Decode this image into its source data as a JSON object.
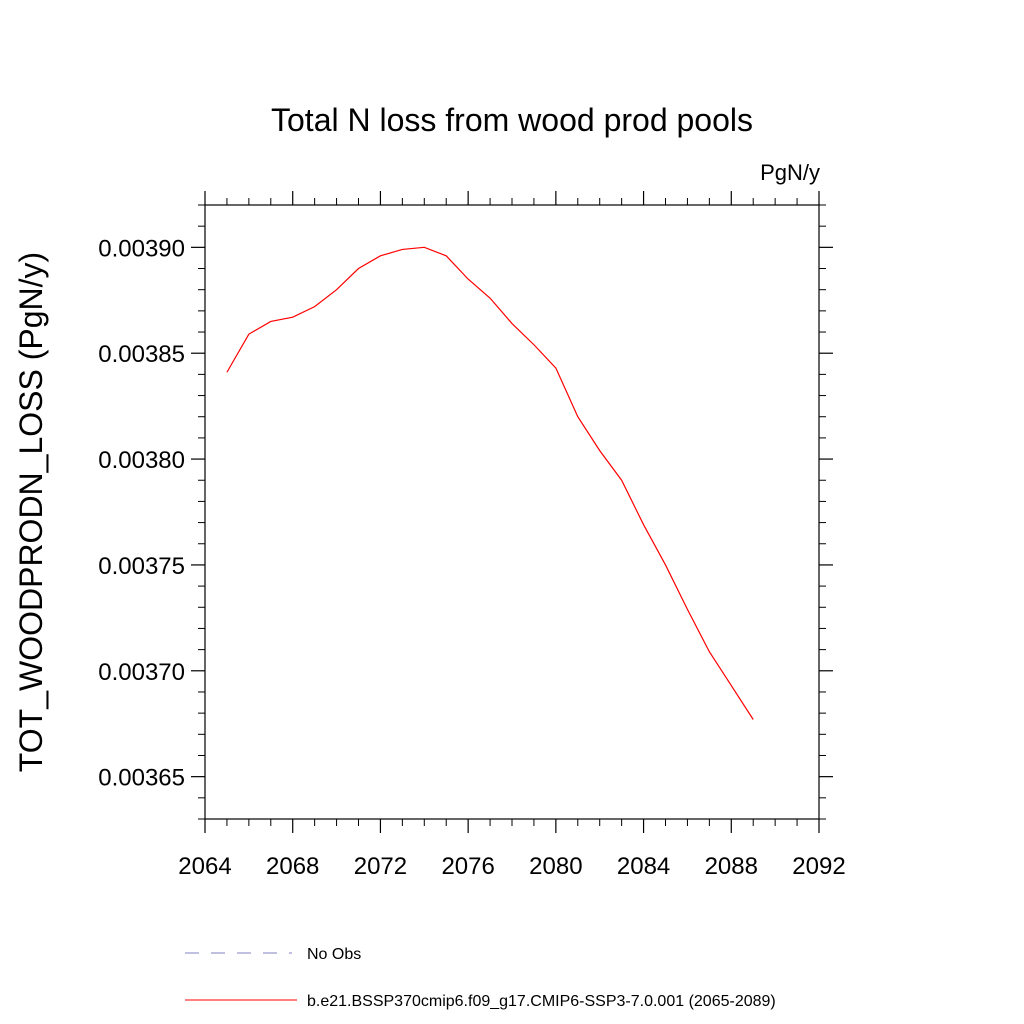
{
  "chart_data": {
    "type": "line",
    "title": "Total N loss from wood prod pools",
    "units": "PgN/y",
    "ylabel": "TOT_WOODPRODN_LOSS  (PgN/y)",
    "xlabel": "",
    "xlim": [
      2064,
      2092
    ],
    "ylim": [
      0.00363,
      0.00392
    ],
    "xticks": [
      2064,
      2068,
      2072,
      2076,
      2080,
      2084,
      2088,
      2092
    ],
    "xtick_labels": [
      "2064",
      "2068",
      "2072",
      "2076",
      "2080",
      "2084",
      "2088",
      "2092"
    ],
    "yticks": [
      0.00365,
      0.0037,
      0.00375,
      0.0038,
      0.00385,
      0.0039
    ],
    "ytick_labels": [
      "0.00365",
      "0.00370",
      "0.00375",
      "0.00380",
      "0.00385",
      "0.00390"
    ],
    "grid": false,
    "legend_position": "bottom",
    "series": [
      {
        "name": "No Obs",
        "color": "#8080c0",
        "dash": "dashed",
        "x": [],
        "y": []
      },
      {
        "name": "b.e21.BSSP370cmip6.f09_g17.CMIP6-SSP3-7.0.001 (2065-2089)",
        "color": "#ff0000",
        "dash": "solid",
        "x": [
          2065,
          2066,
          2067,
          2068,
          2069,
          2070,
          2071,
          2072,
          2073,
          2074,
          2075,
          2076,
          2077,
          2078,
          2079,
          2080,
          2081,
          2082,
          2083,
          2084,
          2085,
          2086,
          2087,
          2088,
          2089
        ],
        "y": [
          0.003841,
          0.003859,
          0.003865,
          0.003867,
          0.003872,
          0.00388,
          0.00389,
          0.003896,
          0.003899,
          0.0039,
          0.003896,
          0.003885,
          0.003876,
          0.003864,
          0.003854,
          0.003843,
          0.00382,
          0.003804,
          0.00379,
          0.003769,
          0.00375,
          0.003729,
          0.003709,
          0.003693,
          0.003677
        ]
      }
    ]
  }
}
